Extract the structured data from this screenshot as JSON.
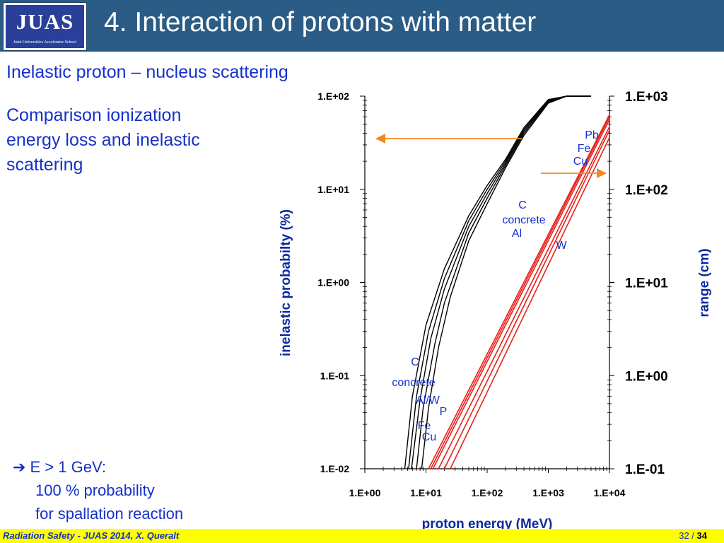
{
  "header": {
    "logo_text": "JUAS",
    "logo_subtext": "Joint Universities Accelerator School",
    "title": "4. Interaction of protons with matter"
  },
  "body_text": {
    "subtitle": "Inelastic proton – nucleus scattering",
    "comparison_line1": "Comparison ionization",
    "comparison_line2": "energy loss and inelastic",
    "comparison_line3": "scattering",
    "bullet_line1": "➔ E > 1 GeV:",
    "bullet_line2": "100 % probability",
    "bullet_line3": "for spallation reaction"
  },
  "footer": {
    "left": "Radiation Safety - JUAS 2014,  X. Queralt",
    "page_current": "32",
    "page_separator": " / ",
    "page_total": "34"
  },
  "colors": {
    "header_bg": "#2b5c86",
    "text_blue": "#1530cc",
    "footer_bg": "#ffff00",
    "arrow_orange": "#f08a1c",
    "range_red": "#e8201a",
    "probability_black": "#000000"
  },
  "chart_data": {
    "type": "line",
    "xlabel": "proton energy (MeV)",
    "ylabel": "inelastic probabilty (%)",
    "ylabel_right": "range (cm)",
    "xscale": "log",
    "yscale": "log",
    "xlim": [
      1,
      10000
    ],
    "ylim": [
      0.01,
      100
    ],
    "ylim_right": [
      0.1,
      1000
    ],
    "x_ticks": [
      "1.E+00",
      "1.E+01",
      "1.E+02",
      "1.E+03",
      "1.E+04"
    ],
    "y_ticks": [
      "1.E-02",
      "1.E-01",
      "1.E+00",
      "1.E+01",
      "1.E+02"
    ],
    "y_ticks_right": [
      "1.E-01",
      "1.E+00",
      "1.E+01",
      "1.E+02",
      "1.E+03"
    ],
    "series": [
      {
        "group": "inelastic probability",
        "axis": "left",
        "color": "#000000",
        "x": [
          4.5,
          6,
          10,
          20,
          50,
          100,
          200,
          400,
          1000,
          2000,
          5000
        ],
        "y": [
          0.01,
          0.06,
          0.35,
          1.4,
          5.2,
          11,
          21,
          46,
          92,
          100,
          100
        ]
      },
      {
        "group": "inelastic probability",
        "axis": "left",
        "color": "#000000",
        "x": [
          5.2,
          7,
          11,
          20,
          50,
          100,
          200,
          400,
          1000,
          2000,
          5000
        ],
        "y": [
          0.01,
          0.06,
          0.3,
          1.1,
          4.6,
          10,
          20,
          44,
          90,
          100,
          100
        ]
      },
      {
        "group": "inelastic probability",
        "axis": "left",
        "color": "#000000",
        "x": [
          5.8,
          8,
          12,
          20,
          50,
          100,
          200,
          400,
          1000,
          2000,
          5000
        ],
        "y": [
          0.01,
          0.055,
          0.25,
          0.85,
          4,
          9,
          19,
          42,
          88,
          100,
          100
        ]
      },
      {
        "group": "inelastic probability",
        "axis": "left",
        "color": "#000000",
        "x": [
          7,
          9,
          14,
          20,
          50,
          100,
          200,
          400,
          1000,
          2000,
          5000
        ],
        "y": [
          0.01,
          0.045,
          0.22,
          0.6,
          3.4,
          8,
          18,
          40,
          86,
          100,
          100
        ]
      },
      {
        "group": "inelastic probability",
        "axis": "left",
        "color": "#000000",
        "x": [
          8.5,
          11,
          16,
          25,
          50,
          100,
          200,
          400,
          1000,
          2000,
          5000
        ],
        "y": [
          0.01,
          0.045,
          0.2,
          0.7,
          2.8,
          7,
          17,
          38,
          84,
          100,
          100
        ]
      },
      {
        "group": "range",
        "axis": "right",
        "color": "#e8201a",
        "x": [
          11,
          10000
        ],
        "y": [
          0.1,
          630
        ]
      },
      {
        "group": "range",
        "axis": "right",
        "color": "#e8201a",
        "x": [
          12,
          10000
        ],
        "y": [
          0.1,
          600
        ]
      },
      {
        "group": "range",
        "axis": "right",
        "color": "#e8201a",
        "x": [
          13,
          10000
        ],
        "y": [
          0.1,
          560
        ]
      },
      {
        "group": "range",
        "axis": "right",
        "color": "#e8201a",
        "x": [
          16,
          10000
        ],
        "y": [
          0.1,
          470
        ]
      },
      {
        "group": "range",
        "axis": "right",
        "color": "#e8201a",
        "x": [
          20,
          10000
        ],
        "y": [
          0.1,
          430
        ]
      },
      {
        "group": "range",
        "axis": "right",
        "color": "#e8201a",
        "x": [
          25,
          10000
        ],
        "y": [
          0.1,
          360
        ]
      }
    ],
    "annotations": {
      "lower_left": [
        "C",
        "concrete",
        "Al",
        "W",
        "P",
        "Fe",
        "Cu"
      ],
      "upper_right": [
        "Pb",
        "Fe",
        "Cu",
        "C",
        "concrete",
        "Al",
        "W"
      ]
    },
    "grid": false,
    "legend": "none"
  }
}
